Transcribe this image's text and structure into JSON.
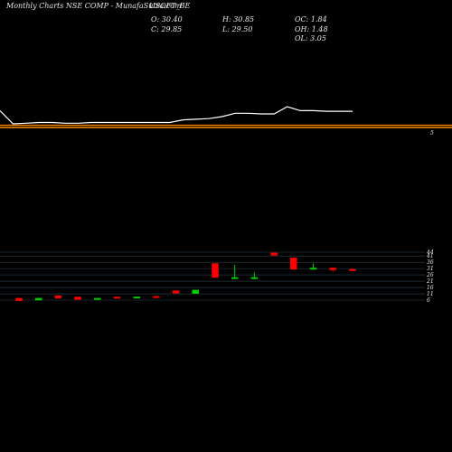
{
  "header": {
    "source": "Monthly Charts NSE COMP -  MunafaSutra.com",
    "symbol": "USOFT_BE",
    "o_label": "O: 30.40",
    "c_label": "C: 29.85",
    "h_label": "H: 30.85",
    "l_label": "L: 29.50",
    "oc_label": "OC: 1.84",
    "oh_label": "OH: 1.48",
    "ol_label": "OL: 3.05"
  },
  "colors": {
    "background": "#000000",
    "up": "#00cc00",
    "down": "#ff0000",
    "price_line": "#ffffff",
    "level_line": "#ff8c00",
    "grid": "#334455"
  },
  "chart_data": [
    {
      "type": "line",
      "series": [
        {
          "values": [
            36,
            26,
            26.5,
            27,
            27,
            26.5,
            26.5,
            27,
            27,
            27,
            27,
            27,
            27,
            27,
            29,
            29.5,
            30,
            31.5,
            34,
            34,
            33.5,
            33.5,
            39,
            36,
            36,
            35.5,
            35.5,
            35.5
          ]
        }
      ],
      "hline_label": "5"
    },
    {
      "type": "candlestick",
      "yticks": [
        6,
        11,
        16,
        21,
        26,
        31,
        36,
        41,
        44
      ],
      "ylim": [
        6,
        44
      ],
      "candles": [
        {
          "o": 7.5,
          "h": 7.5,
          "l": 5.5,
          "c": 5.5
        },
        {
          "o": 6.0,
          "h": 7.8,
          "l": 6.0,
          "c": 7.5
        },
        {
          "o": 9.5,
          "h": 9.5,
          "l": 7.5,
          "c": 7.5
        },
        {
          "o": 8.5,
          "h": 8.5,
          "l": 6.5,
          "c": 6.5
        },
        {
          "o": 6.5,
          "h": 7.5,
          "l": 6.5,
          "c": 7.5
        },
        {
          "o": 8.5,
          "h": 8.5,
          "l": 7.3,
          "c": 7.7
        },
        {
          "o": 8.2,
          "h": 8.8,
          "l": 8.2,
          "c": 8.6
        },
        {
          "o": 9.0,
          "h": 9.0,
          "l": 7.8,
          "c": 8.0
        },
        {
          "o": 13.5,
          "h": 13.5,
          "l": 11.5,
          "c": 11.5
        },
        {
          "o": 11.2,
          "h": 14.0,
          "l": 11.2,
          "c": 14.0
        },
        {
          "o": 35.0,
          "h": 35.0,
          "l": 24.0,
          "c": 24.0
        },
        {
          "o": 23.5,
          "h": 34.0,
          "l": 23.0,
          "c": 24.0
        },
        {
          "o": 23.0,
          "h": 28.0,
          "l": 22.5,
          "c": 24.0
        },
        {
          "o": 43.5,
          "h": 43.5,
          "l": 41.5,
          "c": 41.5
        },
        {
          "o": 39.5,
          "h": 39.5,
          "l": 30.0,
          "c": 30.5
        },
        {
          "o": 31.5,
          "h": 35.0,
          "l": 30.5,
          "c": 31.5
        },
        {
          "o": 31.5,
          "h": 31.5,
          "l": 28.5,
          "c": 30.0
        },
        {
          "o": 30.4,
          "h": 30.85,
          "l": 29.5,
          "c": 29.85
        }
      ]
    }
  ]
}
